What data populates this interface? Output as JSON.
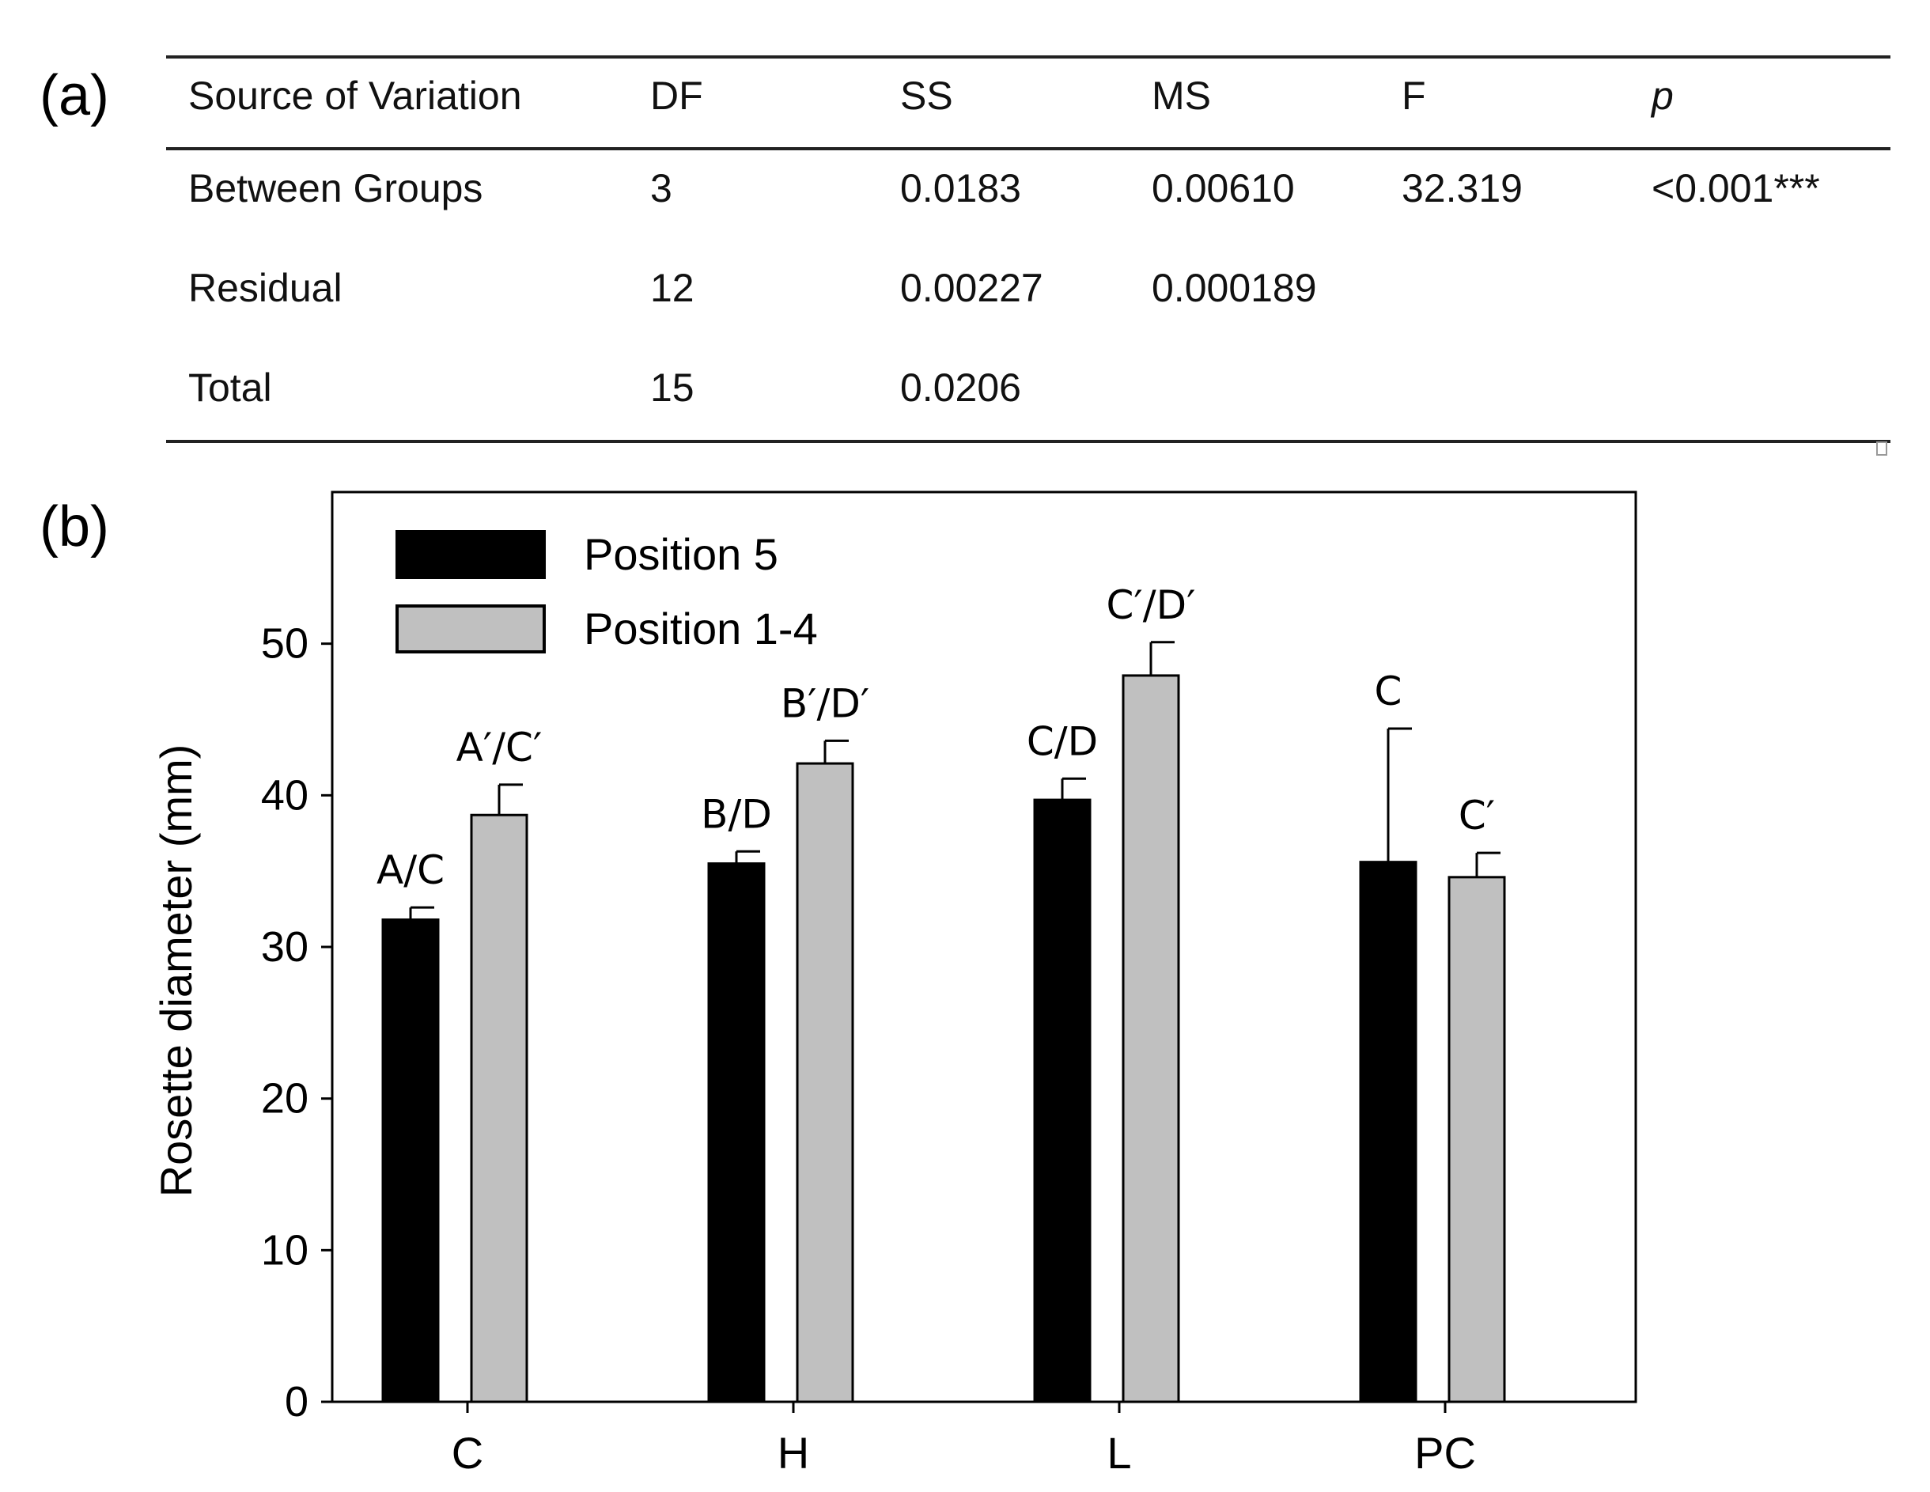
{
  "panels": {
    "a": "(a)",
    "b": "(b)"
  },
  "anova_table": {
    "headers": [
      "Source of Variation",
      "DF",
      "SS",
      "MS",
      "F",
      "p"
    ],
    "rows": [
      [
        "Between Groups",
        "3",
        "0.0183",
        "0.00610",
        "32.319",
        "<0.001***"
      ],
      [
        "Residual",
        "12",
        "0.00227",
        "0.000189",
        "",
        ""
      ],
      [
        "Total",
        "15",
        "0.0206",
        "",
        "",
        ""
      ]
    ]
  },
  "chart_data": {
    "type": "bar",
    "title": "",
    "xlabel": "",
    "ylabel": "Rosette diameter (mm)",
    "ylim": [
      0,
      60
    ],
    "yticks": [
      0,
      10,
      20,
      30,
      40,
      50
    ],
    "categories": [
      "C",
      "H",
      "L",
      "PC"
    ],
    "series": [
      {
        "name": "Position 5",
        "color": "#000000",
        "values": [
          31.8,
          35.5,
          39.7,
          35.6
        ],
        "errors": [
          0.8,
          0.8,
          1.4,
          8.8
        ],
        "labels": [
          "A/C",
          "B/D",
          "C/D",
          "C"
        ]
      },
      {
        "name": "Position 1-4",
        "color": "#c0c0c0",
        "values": [
          38.7,
          42.1,
          47.9,
          34.6
        ],
        "errors": [
          2.0,
          1.5,
          2.2,
          1.6
        ],
        "labels": [
          "A′/C′",
          "B′/D′",
          "C′/D′",
          "C′"
        ]
      }
    ],
    "legend_position": "top-left"
  }
}
